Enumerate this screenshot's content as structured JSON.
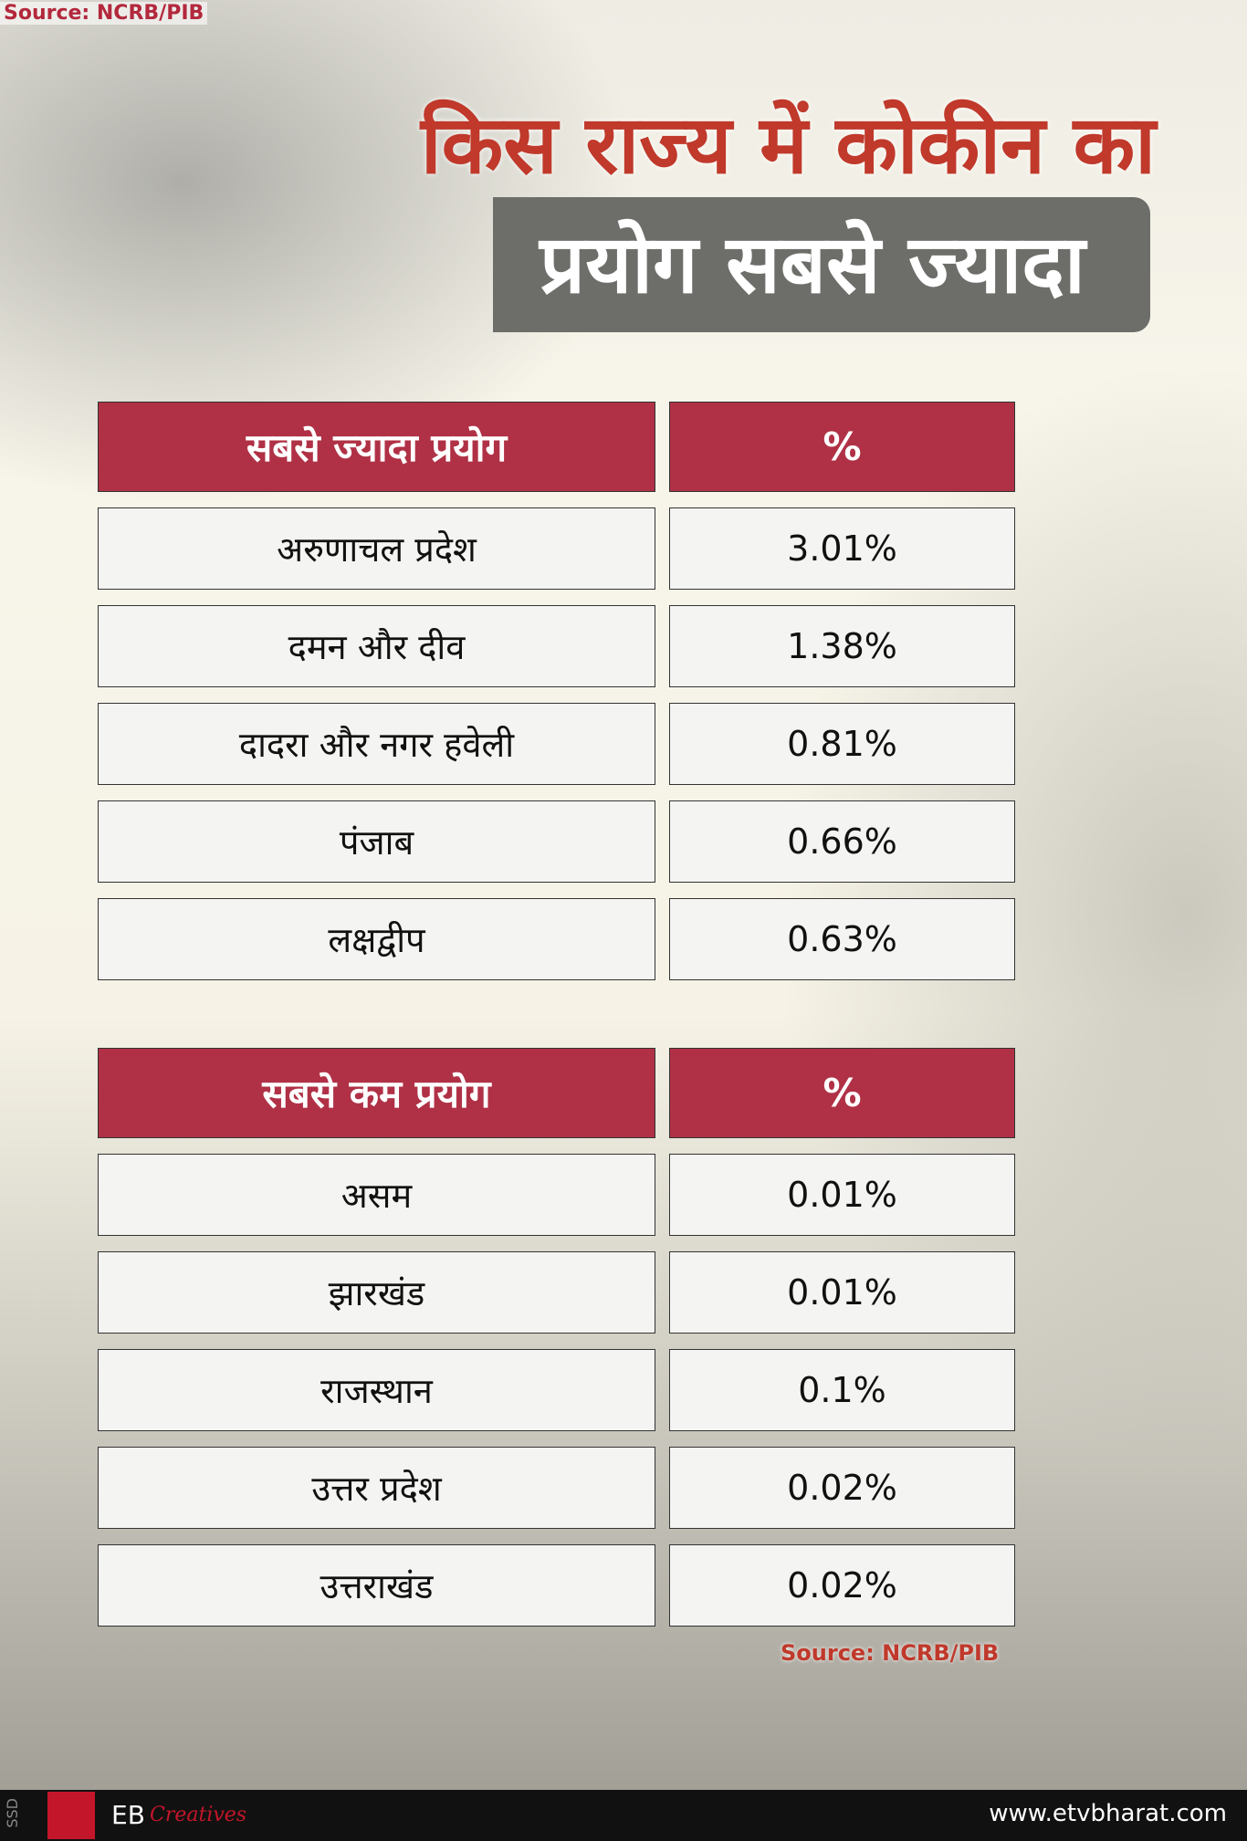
{
  "source_top": "Source: NCRB/PIB",
  "title": {
    "line1": "किस राज्य में कोकीन का",
    "line2": "प्रयोग सबसे ज्यादा"
  },
  "tables": [
    {
      "header": [
        "सबसे ज्यादा प्रयोग",
        "%"
      ],
      "rows": [
        [
          "अरुणाचल प्रदेश",
          "3.01%"
        ],
        [
          "दमन और दीव",
          "1.38%"
        ],
        [
          "दादरा और नगर हवेली",
          "0.81%"
        ],
        [
          "पंजाब",
          "0.66%"
        ],
        [
          "लक्षद्वीप",
          "0.63%"
        ]
      ]
    },
    {
      "header": [
        "सबसे कम प्रयोग",
        "%"
      ],
      "rows": [
        [
          "असम",
          "0.01%"
        ],
        [
          "झारखंड",
          "0.01%"
        ],
        [
          "राजस्थान",
          "0.1%"
        ],
        [
          "उत्तर प्रदेश",
          "0.02%"
        ],
        [
          "उत्तराखंड",
          "0.02%"
        ]
      ]
    }
  ],
  "source_bottom": "Source: NCRB/PIB",
  "footer": {
    "side": "SSD",
    "brand": "EB",
    "brand_sub": "Creatives",
    "website": "www.etvbharat.com"
  }
}
